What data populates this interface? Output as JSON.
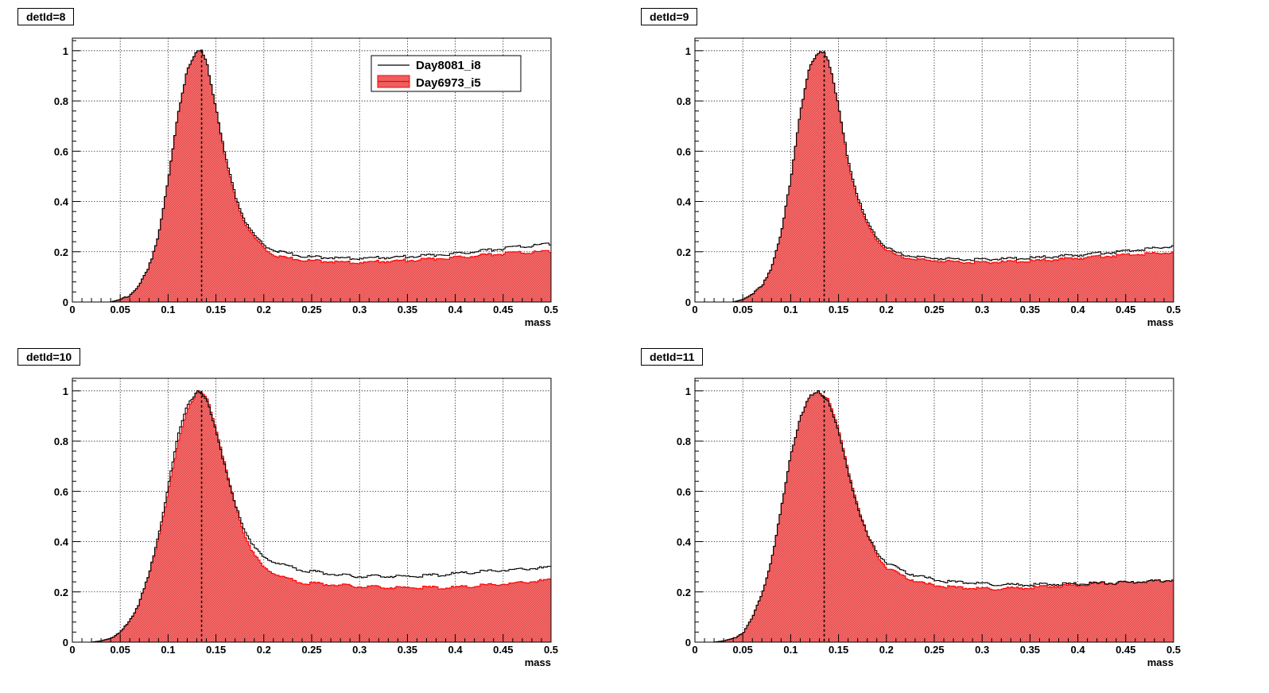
{
  "legend": [
    {
      "label": "Day8081_i8",
      "color": "#000000",
      "style": "line"
    },
    {
      "label": "Day6973_i5",
      "color": "#ff0000",
      "fill": "#ff6666",
      "style": "filled"
    }
  ],
  "chart_data": [
    {
      "type": "area",
      "title": "detId=8",
      "xlabel": "mass",
      "ylabel": "",
      "xlim": [
        0,
        0.5
      ],
      "ylim": [
        0,
        1.05
      ],
      "xticks": [
        "0",
        "0.05",
        "0.1",
        "0.15",
        "0.2",
        "0.25",
        "0.3",
        "0.35",
        "0.4",
        "0.45",
        "0.5"
      ],
      "yticks": [
        "0",
        "0.2",
        "0.4",
        "0.6",
        "0.8",
        "1"
      ],
      "grid": true,
      "legend_position": "top-right",
      "peak_marker_x": 0.135,
      "x": [
        0.0,
        0.04,
        0.05,
        0.06,
        0.07,
        0.08,
        0.09,
        0.1,
        0.11,
        0.12,
        0.13,
        0.135,
        0.14,
        0.15,
        0.16,
        0.17,
        0.18,
        0.19,
        0.2,
        0.21,
        0.22,
        0.24,
        0.26,
        0.28,
        0.3,
        0.33,
        0.36,
        0.4,
        0.45,
        0.5
      ],
      "series": [
        {
          "name": "Day8081_i8",
          "values": [
            0.0,
            0.0,
            0.01,
            0.03,
            0.07,
            0.14,
            0.27,
            0.48,
            0.74,
            0.93,
            1.0,
            1.0,
            0.96,
            0.78,
            0.58,
            0.43,
            0.33,
            0.27,
            0.23,
            0.21,
            0.2,
            0.185,
            0.18,
            0.178,
            0.177,
            0.18,
            0.185,
            0.195,
            0.215,
            0.235
          ]
        },
        {
          "name": "Day6973_i5",
          "values": [
            0.0,
            0.0,
            0.01,
            0.03,
            0.07,
            0.14,
            0.27,
            0.48,
            0.74,
            0.93,
            1.0,
            1.0,
            0.96,
            0.78,
            0.57,
            0.42,
            0.32,
            0.26,
            0.22,
            0.19,
            0.18,
            0.17,
            0.165,
            0.162,
            0.16,
            0.165,
            0.17,
            0.18,
            0.195,
            0.205
          ]
        }
      ]
    },
    {
      "type": "area",
      "title": "detId=9",
      "xlabel": "mass",
      "ylabel": "",
      "xlim": [
        0,
        0.5
      ],
      "ylim": [
        0,
        1.05
      ],
      "xticks": [
        "0",
        "0.05",
        "0.1",
        "0.15",
        "0.2",
        "0.25",
        "0.3",
        "0.35",
        "0.4",
        "0.45",
        "0.5"
      ],
      "yticks": [
        "0",
        "0.2",
        "0.4",
        "0.6",
        "0.8",
        "1"
      ],
      "grid": true,
      "peak_marker_x": 0.135,
      "x": [
        0.0,
        0.04,
        0.05,
        0.06,
        0.07,
        0.08,
        0.09,
        0.1,
        0.11,
        0.12,
        0.13,
        0.135,
        0.14,
        0.15,
        0.16,
        0.17,
        0.18,
        0.19,
        0.2,
        0.21,
        0.22,
        0.24,
        0.26,
        0.28,
        0.3,
        0.33,
        0.36,
        0.4,
        0.45,
        0.5
      ],
      "series": [
        {
          "name": "Day8081_i8",
          "values": [
            0.0,
            0.0,
            0.01,
            0.03,
            0.07,
            0.14,
            0.27,
            0.49,
            0.76,
            0.94,
            1.0,
            1.0,
            0.96,
            0.78,
            0.57,
            0.42,
            0.32,
            0.26,
            0.22,
            0.2,
            0.19,
            0.18,
            0.175,
            0.173,
            0.172,
            0.175,
            0.18,
            0.19,
            0.205,
            0.225
          ]
        },
        {
          "name": "Day6973_i5",
          "values": [
            0.0,
            0.0,
            0.01,
            0.03,
            0.07,
            0.14,
            0.27,
            0.49,
            0.76,
            0.94,
            1.0,
            1.0,
            0.96,
            0.78,
            0.56,
            0.41,
            0.31,
            0.25,
            0.21,
            0.19,
            0.18,
            0.17,
            0.165,
            0.162,
            0.16,
            0.163,
            0.168,
            0.178,
            0.19,
            0.2
          ]
        }
      ]
    },
    {
      "type": "area",
      "title": "detId=10",
      "xlabel": "mass",
      "ylabel": "",
      "xlim": [
        0,
        0.5
      ],
      "ylim": [
        0,
        1.05
      ],
      "xticks": [
        "0",
        "0.05",
        "0.1",
        "0.15",
        "0.2",
        "0.25",
        "0.3",
        "0.35",
        "0.4",
        "0.45",
        "0.5"
      ],
      "yticks": [
        "0",
        "0.2",
        "0.4",
        "0.6",
        "0.8",
        "1"
      ],
      "grid": true,
      "peak_marker_x": 0.135,
      "x": [
        0.0,
        0.02,
        0.03,
        0.04,
        0.05,
        0.06,
        0.07,
        0.08,
        0.09,
        0.1,
        0.11,
        0.12,
        0.13,
        0.14,
        0.15,
        0.16,
        0.17,
        0.18,
        0.19,
        0.2,
        0.22,
        0.24,
        0.26,
        0.28,
        0.3,
        0.33,
        0.36,
        0.4,
        0.45,
        0.5
      ],
      "series": [
        {
          "name": "Day8081_i8",
          "values": [
            0.0,
            0.0,
            0.005,
            0.015,
            0.04,
            0.09,
            0.16,
            0.27,
            0.43,
            0.62,
            0.82,
            0.95,
            1.0,
            0.97,
            0.85,
            0.69,
            0.55,
            0.45,
            0.38,
            0.34,
            0.31,
            0.29,
            0.28,
            0.27,
            0.265,
            0.265,
            0.265,
            0.275,
            0.29,
            0.3
          ]
        },
        {
          "name": "Day6973_i5",
          "values": [
            0.0,
            0.0,
            0.005,
            0.015,
            0.04,
            0.09,
            0.16,
            0.27,
            0.42,
            0.6,
            0.79,
            0.93,
            1.0,
            0.98,
            0.86,
            0.7,
            0.55,
            0.43,
            0.35,
            0.3,
            0.26,
            0.24,
            0.235,
            0.23,
            0.225,
            0.22,
            0.22,
            0.22,
            0.235,
            0.25
          ]
        }
      ]
    },
    {
      "type": "area",
      "title": "detId=11",
      "xlabel": "mass",
      "ylabel": "",
      "xlim": [
        0,
        0.5
      ],
      "ylim": [
        0,
        1.05
      ],
      "xticks": [
        "0",
        "0.05",
        "0.1",
        "0.15",
        "0.2",
        "0.25",
        "0.3",
        "0.35",
        "0.4",
        "0.45",
        "0.5"
      ],
      "yticks": [
        "0",
        "0.2",
        "0.4",
        "0.6",
        "0.8",
        "1"
      ],
      "grid": true,
      "peak_marker_x": 0.135,
      "x": [
        0.0,
        0.02,
        0.03,
        0.04,
        0.05,
        0.06,
        0.07,
        0.08,
        0.09,
        0.1,
        0.11,
        0.12,
        0.13,
        0.14,
        0.15,
        0.16,
        0.17,
        0.18,
        0.19,
        0.2,
        0.22,
        0.24,
        0.26,
        0.28,
        0.3,
        0.33,
        0.36,
        0.4,
        0.45,
        0.5
      ],
      "series": [
        {
          "name": "Day8081_i8",
          "values": [
            0.0,
            0.0,
            0.005,
            0.015,
            0.04,
            0.1,
            0.19,
            0.33,
            0.53,
            0.74,
            0.9,
            0.98,
            1.0,
            0.96,
            0.84,
            0.68,
            0.54,
            0.43,
            0.36,
            0.32,
            0.28,
            0.26,
            0.245,
            0.24,
            0.235,
            0.232,
            0.232,
            0.235,
            0.24,
            0.25
          ]
        },
        {
          "name": "Day6973_i5",
          "values": [
            0.0,
            0.0,
            0.005,
            0.015,
            0.04,
            0.1,
            0.19,
            0.33,
            0.53,
            0.74,
            0.9,
            0.98,
            1.0,
            0.97,
            0.85,
            0.69,
            0.55,
            0.43,
            0.35,
            0.3,
            0.26,
            0.235,
            0.225,
            0.218,
            0.215,
            0.218,
            0.222,
            0.23,
            0.24,
            0.25
          ]
        }
      ]
    }
  ]
}
